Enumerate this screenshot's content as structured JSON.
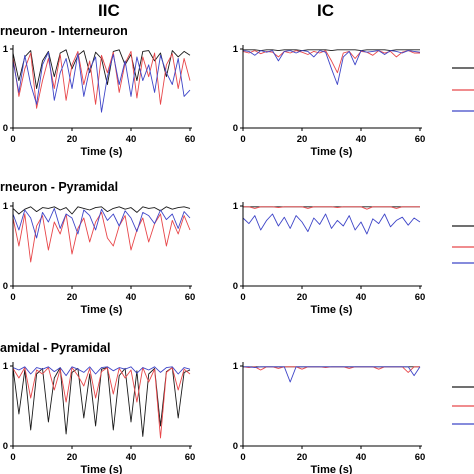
{
  "figure": {
    "col_titles": [
      "IIC",
      "IC"
    ],
    "row_titles": [
      "rneuron - Interneuron",
      "rneuron - Pyramidal",
      "amidal - Pyramidal"
    ]
  },
  "colors": {
    "black": "#1a1a1a",
    "red": "#e8474a",
    "blue": "#3f46c8"
  },
  "chart_data": [
    {
      "type": "line",
      "panel": "IIC row1",
      "title": "",
      "xlabel": "Time (s)",
      "ylabel": "",
      "xlim": [
        0,
        60
      ],
      "ylim": [
        0,
        1
      ],
      "xticks": [
        "0",
        "20",
        "40",
        "60"
      ],
      "yticks": [
        "0",
        "1"
      ],
      "x": [
        0,
        2,
        4,
        6,
        8,
        10,
        12,
        14,
        16,
        18,
        20,
        22,
        24,
        26,
        28,
        30,
        32,
        34,
        36,
        38,
        40,
        42,
        44,
        46,
        48,
        50,
        52,
        54,
        56,
        58,
        60
      ],
      "series": [
        {
          "color": "black",
          "values": [
            0.95,
            0.6,
            0.9,
            0.98,
            0.5,
            0.85,
            0.97,
            0.65,
            0.95,
            0.99,
            0.75,
            0.92,
            0.98,
            0.7,
            0.96,
            0.88,
            0.55,
            0.97,
            0.99,
            0.8,
            0.93,
            0.6,
            0.97,
            0.98,
            0.85,
            0.95,
            0.65,
            0.98,
            0.9,
            0.97,
            0.92
          ]
        },
        {
          "color": "red",
          "values": [
            0.9,
            0.4,
            0.75,
            0.95,
            0.25,
            0.6,
            0.88,
            0.5,
            0.93,
            0.35,
            0.8,
            0.97,
            0.55,
            0.85,
            0.3,
            0.92,
            0.7,
            0.96,
            0.45,
            0.82,
            0.97,
            0.38,
            0.9,
            0.65,
            0.95,
            0.3,
            0.8,
            0.94,
            0.5,
            0.88,
            0.6
          ]
        },
        {
          "color": "blue",
          "values": [
            0.85,
            0.45,
            0.92,
            0.55,
            0.3,
            0.8,
            0.96,
            0.35,
            0.7,
            0.88,
            0.5,
            0.94,
            0.4,
            0.75,
            0.9,
            0.2,
            0.65,
            0.93,
            0.55,
            0.85,
            0.4,
            0.9,
            0.6,
            0.8,
            0.45,
            0.92,
            0.7,
            0.55,
            0.88,
            0.4,
            0.48
          ]
        }
      ]
    },
    {
      "type": "line",
      "panel": "IC row1",
      "title": "",
      "xlabel": "Time (s)",
      "ylabel": "",
      "xlim": [
        0,
        60
      ],
      "ylim": [
        0,
        1
      ],
      "xticks": [
        "0",
        "20",
        "40",
        "60"
      ],
      "yticks": [
        "0",
        "1"
      ],
      "x": [
        0,
        2,
        4,
        6,
        8,
        10,
        12,
        14,
        16,
        18,
        20,
        22,
        24,
        26,
        28,
        30,
        32,
        34,
        36,
        38,
        40,
        42,
        44,
        46,
        48,
        50,
        52,
        54,
        56,
        58,
        60
      ],
      "series": [
        {
          "color": "black",
          "values": [
            0.99,
            0.99,
            0.99,
            0.98,
            0.99,
            0.99,
            0.98,
            0.99,
            0.99,
            0.99,
            0.98,
            0.99,
            0.99,
            0.99,
            0.99,
            0.98,
            0.99,
            0.99,
            0.99,
            0.99,
            0.98,
            0.99,
            0.99,
            0.99,
            0.99,
            0.98,
            0.99,
            0.99,
            0.99,
            0.99,
            0.99
          ]
        },
        {
          "color": "red",
          "values": [
            0.97,
            0.95,
            0.98,
            0.94,
            0.97,
            0.96,
            0.9,
            0.97,
            0.95,
            0.98,
            0.96,
            0.93,
            0.97,
            0.95,
            0.98,
            0.85,
            0.7,
            0.95,
            0.97,
            0.88,
            0.97,
            0.96,
            0.92,
            0.98,
            0.95,
            0.97,
            0.9,
            0.96,
            0.98,
            0.95,
            0.95
          ]
        },
        {
          "color": "blue",
          "values": [
            0.98,
            0.97,
            0.92,
            0.98,
            0.96,
            0.98,
            0.85,
            0.97,
            0.98,
            0.95,
            0.98,
            0.97,
            0.9,
            0.98,
            0.96,
            0.75,
            0.55,
            0.9,
            0.97,
            0.8,
            0.98,
            0.96,
            0.97,
            0.98,
            0.93,
            0.98,
            0.97,
            0.95,
            0.98,
            0.97,
            0.96
          ]
        }
      ]
    },
    {
      "type": "line",
      "panel": "IIC row2",
      "title": "",
      "xlabel": "Time (s)",
      "ylabel": "",
      "xlim": [
        0,
        60
      ],
      "ylim": [
        0,
        1
      ],
      "xticks": [
        "0",
        "20",
        "40",
        "60"
      ],
      "yticks": [
        "0",
        "1"
      ],
      "x": [
        0,
        2,
        4,
        6,
        8,
        10,
        12,
        14,
        16,
        18,
        20,
        22,
        24,
        26,
        28,
        30,
        32,
        34,
        36,
        38,
        40,
        42,
        44,
        46,
        48,
        50,
        52,
        54,
        56,
        58,
        60
      ],
      "series": [
        {
          "color": "black",
          "values": [
            0.97,
            0.9,
            0.96,
            0.99,
            0.93,
            0.98,
            0.97,
            0.99,
            0.95,
            0.98,
            0.9,
            0.99,
            0.97,
            0.95,
            0.98,
            0.99,
            0.93,
            0.97,
            0.99,
            0.96,
            0.98,
            0.92,
            0.99,
            0.97,
            0.98,
            0.94,
            0.99,
            0.96,
            0.98,
            0.99,
            0.97
          ]
        },
        {
          "color": "red",
          "values": [
            0.85,
            0.5,
            0.9,
            0.3,
            0.75,
            0.88,
            0.45,
            0.8,
            0.65,
            0.9,
            0.4,
            0.72,
            0.85,
            0.55,
            0.8,
            0.92,
            0.6,
            0.5,
            0.75,
            0.88,
            0.45,
            0.7,
            0.85,
            0.55,
            0.78,
            0.9,
            0.5,
            0.82,
            0.65,
            0.88,
            0.7
          ]
        },
        {
          "color": "blue",
          "values": [
            0.9,
            0.7,
            0.95,
            0.85,
            0.6,
            0.92,
            0.8,
            0.97,
            0.72,
            0.9,
            0.85,
            0.65,
            0.95,
            0.88,
            0.7,
            0.96,
            0.82,
            0.9,
            0.75,
            0.94,
            0.85,
            0.68,
            0.92,
            0.88,
            0.78,
            0.95,
            0.83,
            0.9,
            0.72,
            0.93,
            0.85
          ]
        }
      ]
    },
    {
      "type": "line",
      "panel": "IC row2",
      "title": "",
      "xlabel": "Time (s)",
      "ylabel": "",
      "xlim": [
        0,
        60
      ],
      "ylim": [
        0,
        1
      ],
      "xticks": [
        "0",
        "20",
        "40",
        "60"
      ],
      "yticks": [
        "0",
        "1"
      ],
      "x": [
        0,
        2,
        4,
        6,
        8,
        10,
        12,
        14,
        16,
        18,
        20,
        22,
        24,
        26,
        28,
        30,
        32,
        34,
        36,
        38,
        40,
        42,
        44,
        46,
        48,
        50,
        52,
        54,
        56,
        58,
        60
      ],
      "series": [
        {
          "color": "black",
          "values": [
            0.99,
            0.99,
            0.99,
            0.99,
            0.99,
            0.99,
            0.99,
            0.99,
            0.99,
            0.99,
            0.99,
            0.99,
            0.99,
            0.99,
            0.99,
            0.99,
            0.99,
            0.99,
            0.99,
            0.99,
            0.99,
            0.99,
            0.99,
            0.99,
            0.99,
            0.99,
            0.99,
            0.99,
            0.99,
            0.99,
            0.99
          ]
        },
        {
          "color": "red",
          "values": [
            0.99,
            0.99,
            0.97,
            0.99,
            0.99,
            0.99,
            0.98,
            0.99,
            0.99,
            0.99,
            0.99,
            0.97,
            0.99,
            0.99,
            0.99,
            0.99,
            0.98,
            0.99,
            0.99,
            0.99,
            0.99,
            0.96,
            0.99,
            0.99,
            0.99,
            0.99,
            0.97,
            0.99,
            0.99,
            0.99,
            0.99
          ]
        },
        {
          "color": "blue",
          "values": [
            0.85,
            0.78,
            0.88,
            0.7,
            0.82,
            0.9,
            0.75,
            0.86,
            0.72,
            0.88,
            0.8,
            0.68,
            0.85,
            0.77,
            0.9,
            0.72,
            0.82,
            0.75,
            0.88,
            0.7,
            0.8,
            0.65,
            0.84,
            0.78,
            0.9,
            0.74,
            0.82,
            0.86,
            0.76,
            0.85,
            0.8
          ]
        }
      ]
    },
    {
      "type": "line",
      "panel": "IIC row3",
      "title": "",
      "xlabel": "Time (s)",
      "ylabel": "",
      "xlim": [
        0,
        60
      ],
      "ylim": [
        0,
        1
      ],
      "xticks": [
        "0",
        "20",
        "40",
        "60"
      ],
      "yticks": [
        "0",
        "1"
      ],
      "x": [
        0,
        2,
        4,
        6,
        8,
        10,
        12,
        14,
        16,
        18,
        20,
        22,
        24,
        26,
        28,
        30,
        32,
        34,
        36,
        38,
        40,
        42,
        44,
        46,
        48,
        50,
        52,
        54,
        56,
        58,
        60
      ],
      "series": [
        {
          "color": "black",
          "values": [
            0.98,
            0.4,
            0.95,
            0.2,
            0.9,
            0.97,
            0.3,
            0.85,
            0.98,
            0.15,
            0.92,
            0.97,
            0.35,
            0.9,
            0.25,
            0.96,
            0.98,
            0.2,
            0.88,
            0.97,
            0.3,
            0.94,
            0.12,
            0.9,
            0.97,
            0.25,
            0.93,
            0.98,
            0.35,
            0.92,
            0.95
          ]
        },
        {
          "color": "red",
          "values": [
            0.97,
            0.85,
            0.98,
            0.6,
            0.95,
            0.9,
            0.98,
            0.7,
            0.96,
            0.55,
            0.98,
            0.88,
            0.75,
            0.97,
            0.6,
            0.93,
            0.98,
            0.65,
            0.97,
            0.85,
            0.95,
            0.55,
            0.98,
            0.8,
            0.96,
            0.1,
            0.92,
            0.98,
            0.7,
            0.96,
            0.9
          ]
        },
        {
          "color": "blue",
          "values": [
            0.98,
            0.95,
            0.99,
            0.9,
            0.98,
            0.96,
            0.99,
            0.93,
            0.98,
            0.88,
            0.99,
            0.96,
            0.92,
            0.99,
            0.9,
            0.98,
            0.99,
            0.94,
            0.98,
            0.96,
            0.99,
            0.91,
            0.98,
            0.95,
            0.99,
            0.92,
            0.98,
            0.99,
            0.9,
            0.98,
            0.96
          ]
        }
      ]
    },
    {
      "type": "line",
      "panel": "IC row3",
      "title": "",
      "xlabel": "Time (s)",
      "ylabel": "",
      "xlim": [
        0,
        60
      ],
      "ylim": [
        0,
        1
      ],
      "xticks": [
        "0",
        "20",
        "40",
        "60"
      ],
      "yticks": [
        "0",
        "1"
      ],
      "x": [
        0,
        2,
        4,
        6,
        8,
        10,
        12,
        14,
        16,
        18,
        20,
        22,
        24,
        26,
        28,
        30,
        32,
        34,
        36,
        38,
        40,
        42,
        44,
        46,
        48,
        50,
        52,
        54,
        56,
        58,
        60
      ],
      "series": [
        {
          "color": "black",
          "values": [
            0.99,
            0.99,
            0.99,
            0.99,
            0.99,
            0.99,
            0.99,
            0.99,
            0.99,
            0.99,
            0.99,
            0.99,
            0.99,
            0.99,
            0.99,
            0.99,
            0.99,
            0.99,
            0.99,
            0.99,
            0.99,
            0.99,
            0.99,
            0.99,
            0.99,
            0.99,
            0.99,
            0.99,
            0.99,
            0.99,
            0.99
          ]
        },
        {
          "color": "red",
          "values": [
            0.99,
            0.98,
            0.99,
            0.95,
            0.99,
            0.99,
            0.97,
            0.99,
            0.99,
            0.99,
            0.96,
            0.99,
            0.99,
            0.99,
            0.98,
            0.99,
            0.99,
            0.99,
            0.97,
            0.99,
            0.99,
            0.99,
            0.99,
            0.96,
            0.99,
            0.99,
            0.99,
            0.99,
            0.92,
            0.99,
            0.99
          ]
        },
        {
          "color": "blue",
          "values": [
            0.99,
            0.99,
            0.98,
            0.99,
            0.99,
            0.99,
            0.99,
            0.99,
            0.8,
            0.99,
            0.99,
            0.99,
            0.99,
            0.99,
            0.99,
            0.99,
            0.99,
            0.99,
            0.99,
            0.99,
            0.99,
            0.99,
            0.99,
            0.99,
            0.99,
            0.99,
            0.99,
            0.99,
            0.99,
            0.88,
            0.99
          ]
        }
      ]
    }
  ]
}
